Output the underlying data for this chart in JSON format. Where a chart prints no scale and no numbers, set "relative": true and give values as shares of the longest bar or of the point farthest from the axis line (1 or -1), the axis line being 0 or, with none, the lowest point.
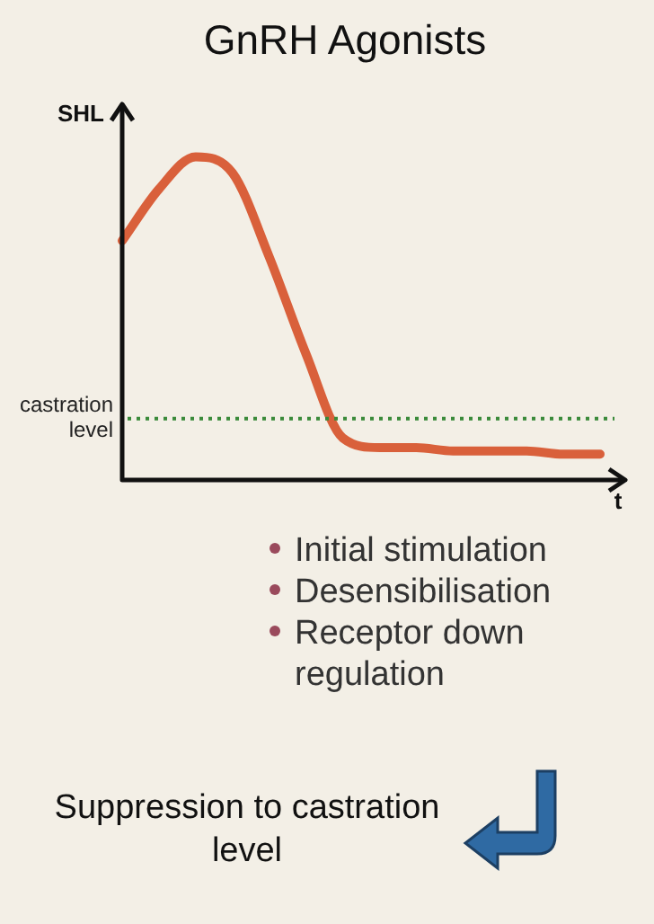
{
  "chart_data": {
    "type": "line",
    "title": "GnRH Agonists",
    "ylabel": "SHL",
    "xlabel": "t",
    "relative": true,
    "categories": [
      null,
      null,
      null,
      null,
      null,
      null,
      null,
      null,
      null,
      null,
      null,
      null,
      null,
      null
    ],
    "series": [
      {
        "color": "#d9603b",
        "values": [
          0.74,
          0.9,
          1.0,
          0.95,
          0.69,
          0.39,
          0.13,
          0.1,
          0.1,
          0.09,
          0.09,
          0.09,
          0.08,
          0.08
        ]
      }
    ],
    "ref_lines": [
      {
        "axis": "y",
        "value": 0.19,
        "label": "castration level",
        "color": "#3a8a3a",
        "line_style": "dotted"
      }
    ],
    "annotations": [
      "Initial stimulation",
      "Desensibilisation",
      "Receptor down regulation",
      "Suppression to castration level"
    ],
    "legend": false,
    "marker": "none",
    "line_style": "solid"
  }
}
